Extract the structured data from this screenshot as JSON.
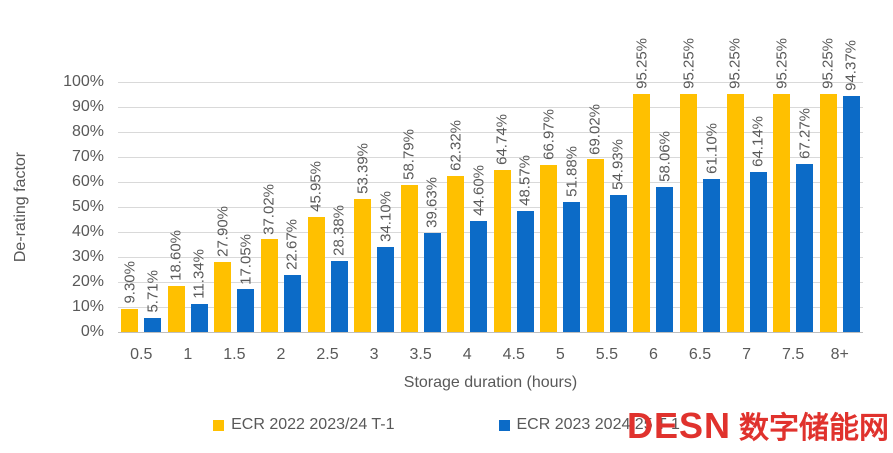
{
  "chart_data": {
    "type": "bar",
    "xlabel": "Storage duration (hours)",
    "ylabel": "De-rating factor",
    "categories": [
      "0.5",
      "1",
      "1.5",
      "2",
      "2.5",
      "3",
      "3.5",
      "4",
      "4.5",
      "5",
      "5.5",
      "6",
      "6.5",
      "7",
      "7.5",
      "8+"
    ],
    "series": [
      {
        "name": "ECR 2022 2023/24 T-1",
        "color": "#FFC000",
        "values": [
          9.3,
          18.6,
          27.9,
          37.02,
          45.95,
          53.39,
          58.79,
          62.32,
          64.74,
          66.97,
          69.02,
          95.25,
          95.25,
          95.25,
          95.25,
          95.25
        ],
        "labels": [
          "9.30%",
          "18.60%",
          "27.90%",
          "37.02%",
          "45.95%",
          "53.39%",
          "58.79%",
          "62.32%",
          "64.74%",
          "66.97%",
          "69.02%",
          "95.25%",
          "95.25%",
          "95.25%",
          "95.25%",
          "95.25%"
        ]
      },
      {
        "name": "ECR 2023 2024/25 T-1",
        "color": "#0C6BC7",
        "values": [
          5.71,
          11.34,
          17.05,
          22.67,
          28.38,
          34.1,
          39.63,
          44.6,
          48.57,
          51.88,
          54.93,
          58.06,
          61.1,
          64.14,
          67.27,
          94.37
        ],
        "labels": [
          "5.71%",
          "11.34%",
          "17.05%",
          "22.67%",
          "28.38%",
          "34.10%",
          "39.63%",
          "44.60%",
          "48.57%",
          "51.88%",
          "54.93%",
          "58.06%",
          "61.10%",
          "64.14%",
          "67.27%",
          "94.37%"
        ]
      }
    ],
    "ylim": [
      0,
      100
    ],
    "yticks": [
      "100%",
      "90%",
      "80%",
      "70%",
      "60%",
      "50%",
      "40%",
      "30%",
      "20%",
      "10%",
      "0%"
    ],
    "grid": true,
    "legend_position": "bottom"
  },
  "colors": {
    "text": "#595959",
    "gridline": "#d9d9d9",
    "background": "#ffffff",
    "watermark": "#e0322d"
  },
  "watermark": {
    "latin": "DESN",
    "cjk": "数字储能网"
  }
}
